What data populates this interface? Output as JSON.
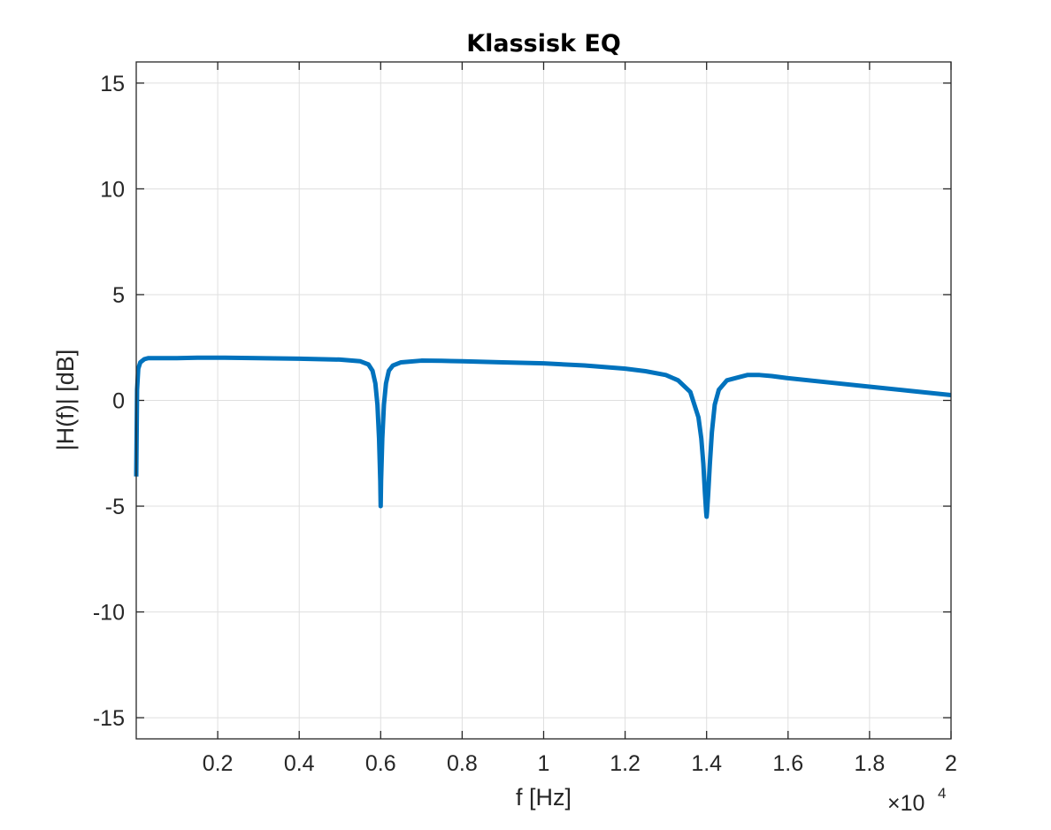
{
  "chart_data": {
    "type": "line",
    "title": "Klassisk EQ",
    "xlabel": "f [Hz]",
    "ylabel": "|H(f)| [dB]",
    "x_exponent_base": "×10",
    "x_exponent_power": "4",
    "xlim": [
      0,
      20000
    ],
    "ylim": [
      -16,
      16
    ],
    "x_ticks": [
      2000,
      4000,
      6000,
      8000,
      10000,
      12000,
      14000,
      16000,
      18000,
      20000
    ],
    "x_tick_labels": [
      "0.2",
      "0.4",
      "0.6",
      "0.8",
      "1",
      "1.2",
      "1.4",
      "1.6",
      "1.8",
      "2"
    ],
    "y_ticks": [
      -15,
      -10,
      -5,
      0,
      5,
      10,
      15
    ],
    "y_tick_labels": [
      "-15",
      "-10",
      "-5",
      "0",
      "5",
      "10",
      "15"
    ],
    "grid": true,
    "series": [
      {
        "color": "#0072BD",
        "x": [
          0,
          20,
          50,
          100,
          200,
          300,
          500,
          1000,
          1500,
          2000,
          3000,
          4000,
          5000,
          5500,
          5700,
          5800,
          5870,
          5920,
          5960,
          5990,
          6000,
          6010,
          6040,
          6080,
          6130,
          6200,
          6300,
          6500,
          7000,
          7500,
          8000,
          9000,
          10000,
          11000,
          12000,
          12500,
          13000,
          13300,
          13600,
          13800,
          13870,
          13920,
          13960,
          13990,
          14000,
          14010,
          14040,
          14080,
          14130,
          14200,
          14300,
          14500,
          14800,
          15000,
          15300,
          15600,
          16000,
          17000,
          18000,
          19000,
          20000
        ],
        "y": [
          -3.6,
          0.5,
          1.5,
          1.8,
          1.95,
          2.0,
          2.0,
          2.0,
          2.02,
          2.02,
          2.0,
          1.97,
          1.93,
          1.85,
          1.7,
          1.4,
          0.8,
          -0.2,
          -1.8,
          -3.8,
          -5.0,
          -3.8,
          -1.8,
          -0.2,
          0.8,
          1.4,
          1.65,
          1.8,
          1.88,
          1.87,
          1.85,
          1.8,
          1.75,
          1.65,
          1.5,
          1.38,
          1.2,
          0.95,
          0.4,
          -0.8,
          -1.8,
          -3.0,
          -4.4,
          -5.3,
          -5.5,
          -5.3,
          -4.4,
          -3.0,
          -1.5,
          -0.2,
          0.5,
          0.95,
          1.1,
          1.2,
          1.2,
          1.15,
          1.05,
          0.85,
          0.65,
          0.45,
          0.25
        ]
      }
    ]
  }
}
